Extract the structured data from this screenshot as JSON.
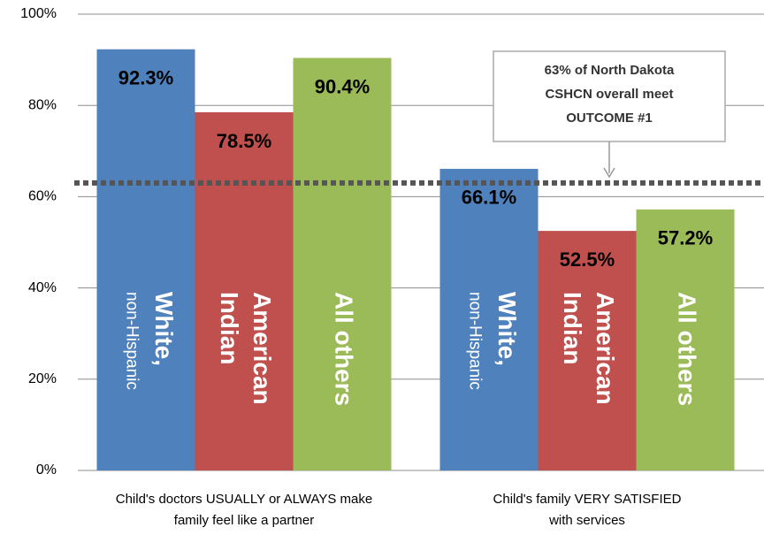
{
  "chart_data": {
    "type": "bar",
    "categories": [
      [
        "Child's doctors USUALLY or ALWAYS make",
        "family feel like a partner"
      ],
      [
        "Child's family VERY SATISFIED",
        "with services"
      ]
    ],
    "series": [
      {
        "name": [
          "White,",
          "non-Hispanic"
        ],
        "color": "#4f81bd",
        "values": [
          92.3,
          66.1
        ],
        "value_labels": [
          "92.3%",
          "66.1%"
        ]
      },
      {
        "name": [
          "American",
          "Indian"
        ],
        "color": "#c0504d",
        "values": [
          78.5,
          52.5
        ],
        "value_labels": [
          "78.5%",
          "52.5%"
        ]
      },
      {
        "name": [
          "All others"
        ],
        "color": "#9bbb59",
        "values": [
          90.4,
          57.2
        ],
        "value_labels": [
          "90.4%",
          "57.2%"
        ]
      }
    ],
    "ylim": [
      0,
      100
    ],
    "yticks": [
      {
        "value": 0,
        "label": "0%"
      },
      {
        "value": 20,
        "label": "20%"
      },
      {
        "value": 40,
        "label": "40%"
      },
      {
        "value": 60,
        "label": "60%"
      },
      {
        "value": 80,
        "label": "80%"
      },
      {
        "value": 100,
        "label": "100%"
      }
    ],
    "grid": true,
    "reference_line": {
      "value": 63,
      "color": "#555555"
    },
    "annotation": [
      "63% of North Dakota",
      "CSHCN overall meet",
      "OUTCOME #1"
    ]
  }
}
